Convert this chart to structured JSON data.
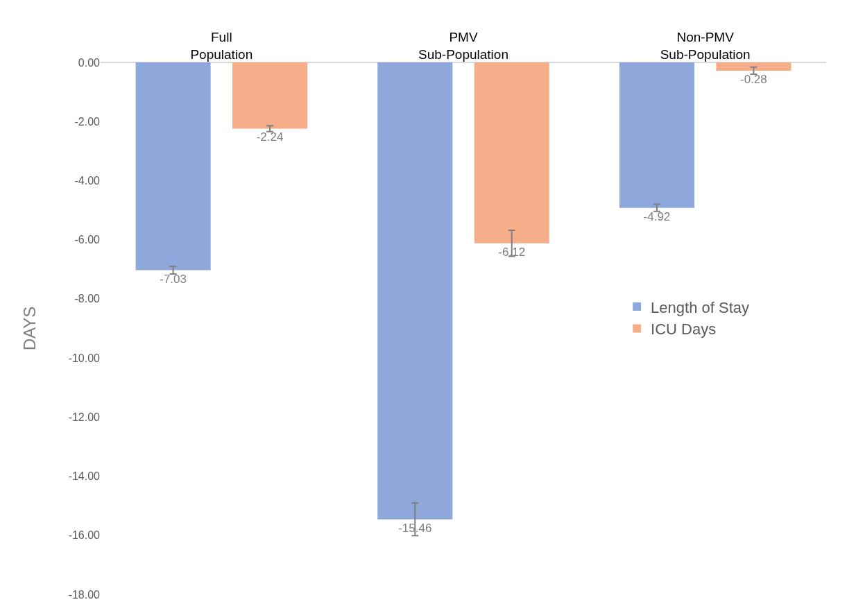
{
  "chart_data": {
    "type": "bar",
    "categories": [
      "Full\nPopulation",
      "PMV\nSub-Population",
      "Non-PMV\nSub-Population"
    ],
    "series": [
      {
        "name": "Length of Stay",
        "color": "#8fa8dc",
        "values": [
          -7.03,
          -15.46,
          -4.92
        ],
        "errors": [
          0.13,
          0.55,
          0.12
        ]
      },
      {
        "name": "ICU Days",
        "color": "#f6ad8a",
        "values": [
          -2.24,
          -6.12,
          -0.28
        ],
        "errors": [
          0.1,
          0.44,
          0.12
        ]
      }
    ],
    "ylabel": "DAYS",
    "ylim": [
      -18,
      0
    ],
    "yticks": [
      {
        "value": -18,
        "label": "-18.00"
      },
      {
        "value": -16,
        "label": "-16.00"
      },
      {
        "value": -14,
        "label": "-14.00"
      },
      {
        "value": -12,
        "label": "-12.00"
      },
      {
        "value": -10,
        "label": "-10.00"
      },
      {
        "value": -8,
        "label": "-8.00"
      },
      {
        "value": -6,
        "label": "-6.00"
      },
      {
        "value": -4,
        "label": "-4.00"
      },
      {
        "value": -2,
        "label": "-2.00"
      },
      {
        "value": 0,
        "label": "0.00"
      }
    ],
    "grid": false,
    "legend": "right",
    "data_labels": true
  }
}
